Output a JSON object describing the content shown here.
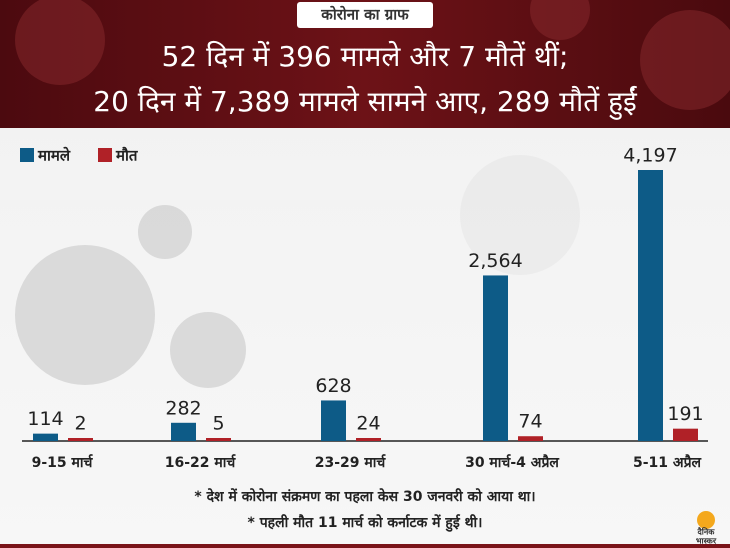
{
  "chart_data": {
    "type": "bar",
    "tag": "कोरोना का ग्राफ",
    "title": "52 दिन में 396 मामले और 7 मौतें थीं;",
    "subtitle": "20 दिन में 7,389 मामले सामने आए, 289 मौतें हुईं",
    "categories": [
      "9-15 मार्च",
      "16-22 मार्च",
      "23-29 मार्च",
      "30 मार्च-4 अप्रैल",
      "5-11 अप्रैल"
    ],
    "series": [
      {
        "name": "मामले",
        "color": "#0d5b87",
        "values": [
          114,
          282,
          628,
          2564,
          4197
        ],
        "value_labels": [
          "114",
          "282",
          "628",
          "2,564",
          "4,197"
        ]
      },
      {
        "name": "मौत",
        "color": "#b02127",
        "values": [
          2,
          5,
          24,
          74,
          191
        ]
      }
    ],
    "annotations": [
      "* देश में कोरोना संक्रमण का पहला केस 30 जनवरी को आया था।",
      "* पहली मौत 11 मार्च को कर्नाटक में हुई थी।"
    ],
    "logo": [
      "दैनिक",
      "भास्कर"
    ],
    "legend": "top-left"
  }
}
